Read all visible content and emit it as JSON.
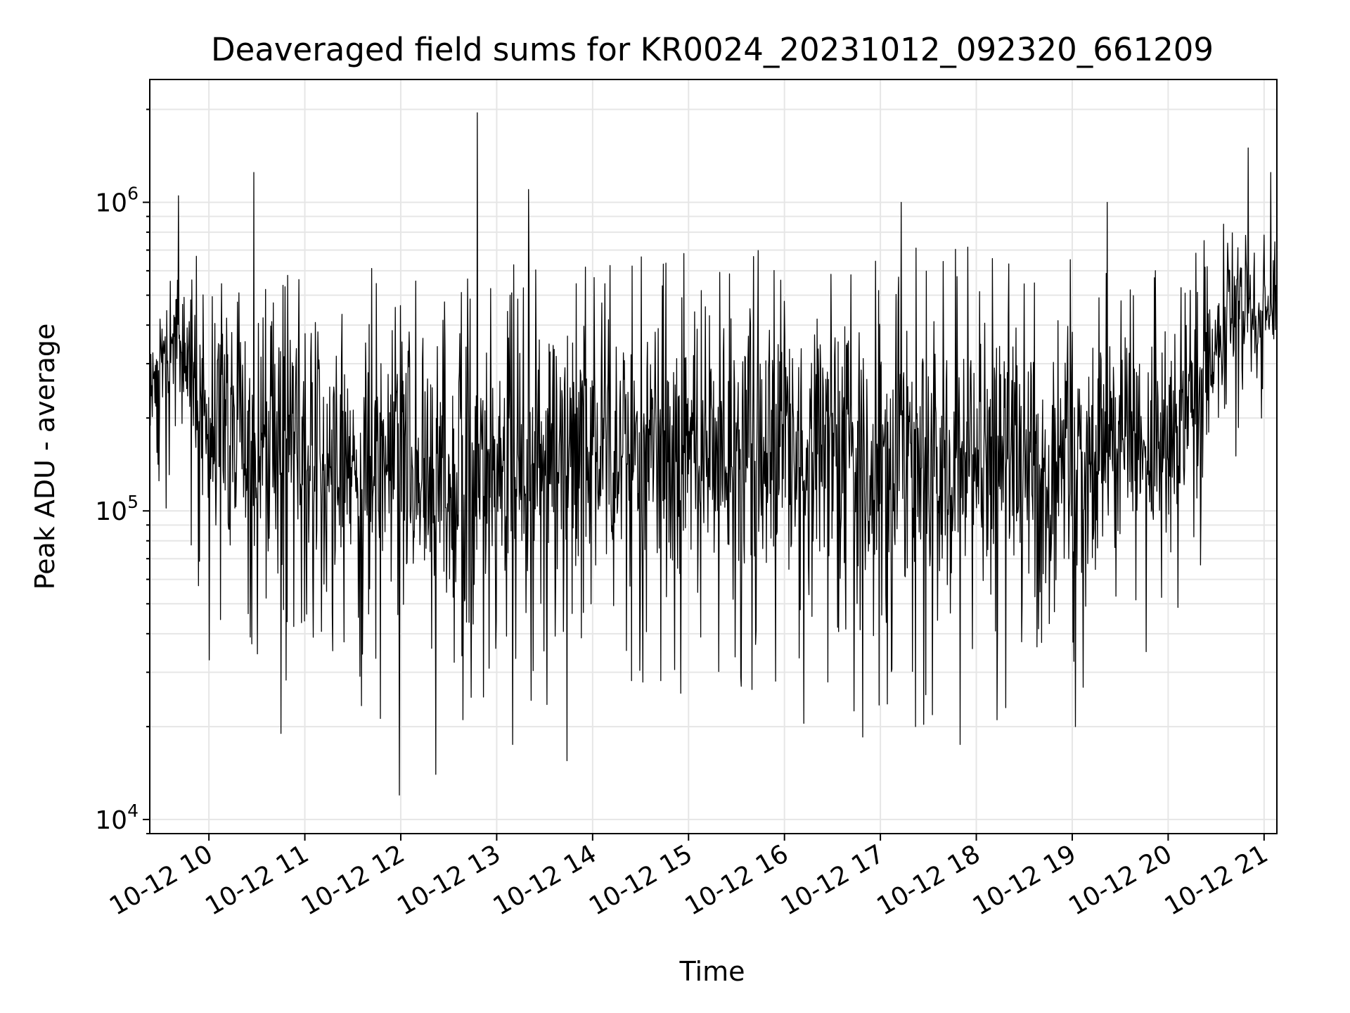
{
  "chart_data": {
    "type": "line",
    "title": "Deaveraged field sums for KR0024_20231012_092320_661209",
    "xlabel": "Time",
    "ylabel": "Peak ADU - average",
    "yscale": "log",
    "ylim": [
      9000,
      2500000
    ],
    "xlim": [
      "2023-10-12 09:23",
      "2023-10-12 21:08"
    ],
    "grid": "on",
    "line_color": "#000000",
    "x_ticks": [
      "10-12 10",
      "10-12 11",
      "10-12 12",
      "10-12 13",
      "10-12 14",
      "10-12 15",
      "10-12 16",
      "10-12 17",
      "10-12 18",
      "10-12 19",
      "10-12 20",
      "10-12 21"
    ],
    "y_ticks": [
      {
        "base": "10",
        "exp": "4",
        "value": 10000
      },
      {
        "base": "10",
        "exp": "5",
        "value": 100000
      },
      {
        "base": "10",
        "exp": "6",
        "value": 1000000
      }
    ],
    "series": [
      {
        "x_start": "2023-10-12 09:23",
        "x_end": "2023-10-12 21:08",
        "typical_level": 250000,
        "envelope": [
          {
            "t": "2023-10-12 09:23",
            "low": 120000,
            "high": 450000
          },
          {
            "t": "2023-10-12 09:40",
            "low": 250000,
            "high": 700000
          },
          {
            "t": "2023-10-12 10:00",
            "low": 60000,
            "high": 450000
          },
          {
            "t": "2023-10-12 11:00",
            "low": 50000,
            "high": 500000
          },
          {
            "t": "2023-10-12 12:00",
            "low": 40000,
            "high": 450000
          },
          {
            "t": "2023-10-12 13:00",
            "low": 40000,
            "high": 500000
          },
          {
            "t": "2023-10-12 14:00",
            "low": 50000,
            "high": 500000
          },
          {
            "t": "2023-10-12 15:00",
            "low": 50000,
            "high": 550000
          },
          {
            "t": "2023-10-12 16:00",
            "low": 50000,
            "high": 550000
          },
          {
            "t": "2023-10-12 17:00",
            "low": 40000,
            "high": 550000
          },
          {
            "t": "2023-10-12 18:00",
            "low": 40000,
            "high": 550000
          },
          {
            "t": "2023-10-12 19:00",
            "low": 50000,
            "high": 500000
          },
          {
            "t": "2023-10-12 20:00",
            "low": 60000,
            "high": 450000
          },
          {
            "t": "2023-10-12 20:45",
            "low": 300000,
            "high": 800000
          },
          {
            "t": "2023-10-12 21:08",
            "low": 300000,
            "high": 700000
          }
        ],
        "notable_points": [
          {
            "t": "2023-10-12 09:41",
            "value": 1050000
          },
          {
            "t": "2023-10-12 10:28",
            "value": 1250000
          },
          {
            "t": "2023-10-12 10:45",
            "value": 19000
          },
          {
            "t": "2023-10-12 11:59",
            "value": 12000
          },
          {
            "t": "2023-10-12 12:22",
            "value": 14000
          },
          {
            "t": "2023-10-12 12:48",
            "value": 1950000
          },
          {
            "t": "2023-10-12 13:10",
            "value": 17500
          },
          {
            "t": "2023-10-12 13:20",
            "value": 1100000
          },
          {
            "t": "2023-10-12 13:44",
            "value": 15500
          },
          {
            "t": "2023-10-12 16:12",
            "value": 20500
          },
          {
            "t": "2023-10-12 16:49",
            "value": 18500
          },
          {
            "t": "2023-10-12 17:13",
            "value": 1000000
          },
          {
            "t": "2023-10-12 17:22",
            "value": 20000
          },
          {
            "t": "2023-10-12 17:50",
            "value": 17500
          },
          {
            "t": "2023-10-12 19:02",
            "value": 20000
          },
          {
            "t": "2023-10-12 19:22",
            "value": 1000000
          },
          {
            "t": "2023-10-12 20:50",
            "value": 1500000
          },
          {
            "t": "2023-10-12 21:04",
            "value": 1250000
          }
        ]
      }
    ]
  }
}
